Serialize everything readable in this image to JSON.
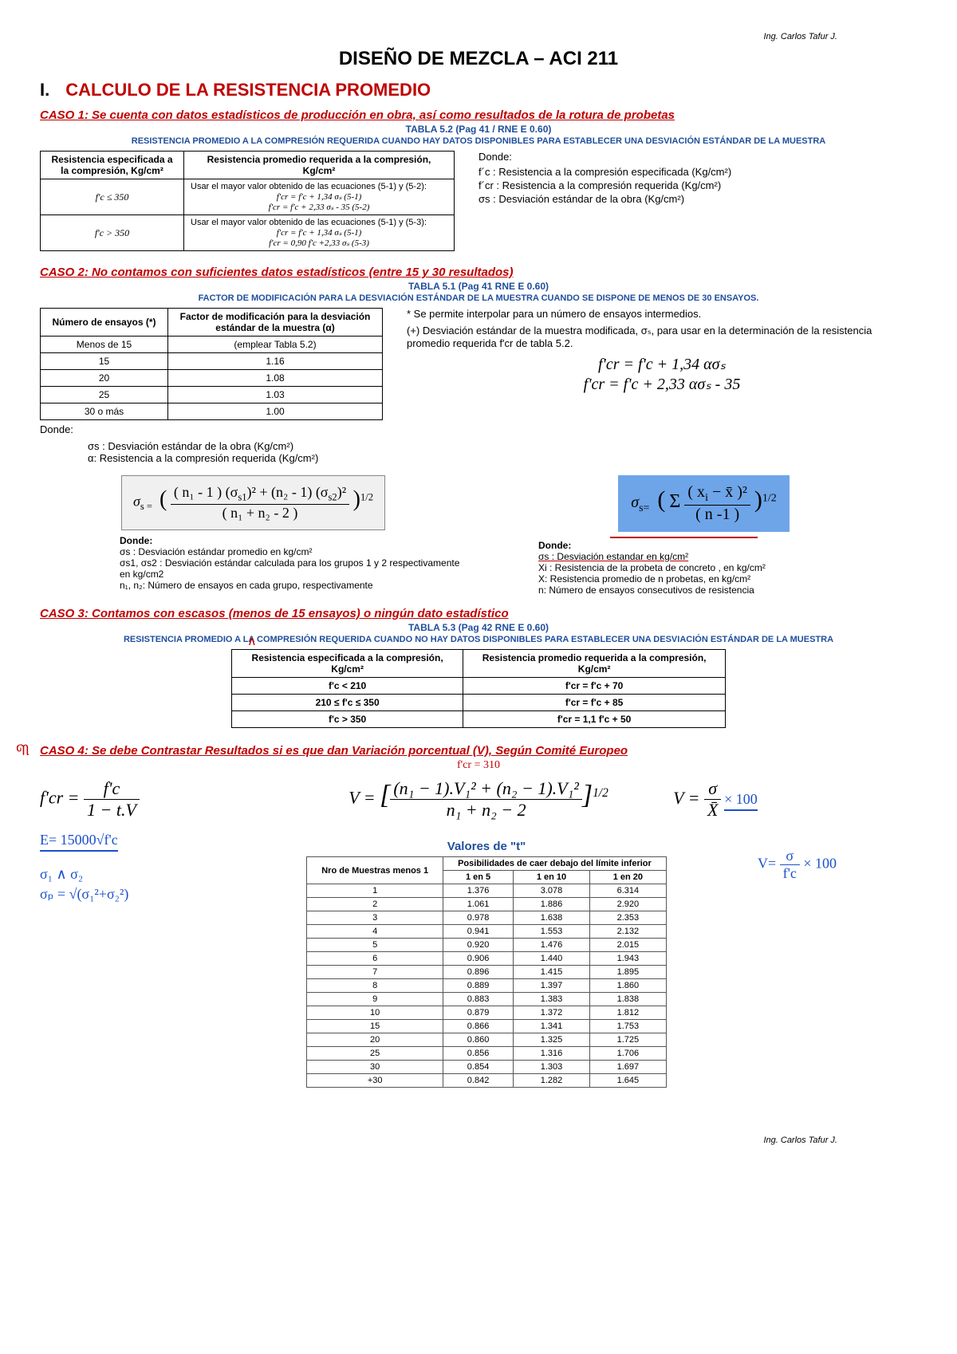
{
  "author": "Ing. Carlos Tafur J.",
  "main_title": "DISEÑO DE MEZCLA – ACI 211",
  "section1": {
    "num": "I.",
    "title": "CALCULO DE LA RESISTENCIA PROMEDIO"
  },
  "caso1": {
    "heading": "CASO 1: Se cuenta con datos estadísticos de producción en obra, así como resultados de la rotura de probetas",
    "tabla_label": "TABLA 5.2 (Pag 41 / RNE E 0.60)",
    "tabla_desc": "RESISTENCIA PROMEDIO A LA COMPRESIÓN REQUERIDA CUANDO HAY DATOS DISPONIBLES PARA ESTABLECER UNA DESVIACIÓN ESTÁNDAR DE LA MUESTRA",
    "table": {
      "h1": "Resistencia especificada a la compresión, Kg/cm²",
      "h2": "Resistencia promedio requerida a la compresión, Kg/cm²",
      "r1c1": "f'c ≤ 350",
      "r1c2a": "Usar el mayor valor obtenido de las ecuaciones (5-1) y (5-2):",
      "r1c2b": "f'cr = f'c + 1,34 σₛ        (5-1)",
      "r1c2c": "f'cr = f'c + 2,33 σₛ - 35   (5-2)",
      "r2c1": "f'c > 350",
      "r2c2a": "Usar el mayor valor obtenido de las ecuaciones (5-1) y (5-3):",
      "r2c2b": "f'cr = f'c + 1,34 σₛ        (5-1)",
      "r2c2c": "f'cr = 0,90 f'c +2,33 σₛ    (5-3)"
    },
    "donde": "Donde:",
    "d1": "f´c : Resistencia a la compresión especificada (Kg/cm²)",
    "d2": "f´cr : Resistencia a la compresión requerida (Kg/cm²)",
    "d3": "σs : Desviación estándar de la obra (Kg/cm²)"
  },
  "caso2": {
    "heading": "CASO 2: No contamos con suficientes datos estadísticos (entre 15 y 30 resultados)",
    "tabla_label": "TABLA 5.1 (Pag 41 RNE E 0.60)",
    "tabla_desc": "FACTOR DE MODIFICACIÓN PARA LA DESVIACIÓN ESTÁNDAR DE LA MUESTRA CUANDO SE DISPONE DE MENOS DE 30 ENSAYOS.",
    "table": {
      "h1": "Número de ensayos (*)",
      "h2": "Factor de modificación para la desviación estándar de la muestra (α)",
      "rows": [
        [
          "Menos de 15",
          "(emplear Tabla 5.2)"
        ],
        [
          "15",
          "1.16"
        ],
        [
          "20",
          "1.08"
        ],
        [
          "25",
          "1.03"
        ],
        [
          "30 o más",
          "1.00"
        ]
      ]
    },
    "note1": "* Se permite interpolar para un número de ensayos intermedios.",
    "note2": "(+) Desviación estándar de la muestra modificada, σₛ, para usar en la determinación de la resistencia promedio requerida  f'cr de tabla 5.2.",
    "eq1": "f'cr = f'c + 1,34 ασₛ",
    "eq2": "f'cr = f'c + 2,33 ασₛ - 35",
    "donde": "Donde:",
    "d1": "σs : Desviación estándar de la obra (Kg/cm²)",
    "d2": "α: Resistencia a la compresión requerida (Kg/cm²)",
    "formula_left_title": "Donde:",
    "formula_left_l1": "σs     : Desviación estándar promedio en kg/cm²",
    "formula_left_l2": "σs1, σs2 : Desviación estándar calculada para los grupos 1 y 2 respectivamente en kg/cm2",
    "formula_left_l3": "n₁, n₂: Número de ensayos en cada grupo, respectivamente",
    "formula_right_title": "Donde:",
    "fr1": "σs : Desviación estandar en kg/cm²",
    "fr2": "Xi : Resistencia de la probeta de concreto , en kg/cm²",
    "fr3": "X:  Resistencia promedio de n probetas, en kg/cm²",
    "fr4": "n:  Número de ensayos consecutivos de resistencia"
  },
  "caso3": {
    "heading": "CASO 3: Contamos con escasos (menos de 15 ensayos) o ningún dato estadístico",
    "tabla_label": "TABLA 5.3 (Pag 42 RNE E 0.60)",
    "tabla_desc": "RESISTENCIA PROMEDIO A LA COMPRESIÓN REQUERIDA CUANDO NO HAY DATOS DISPONIBLES PARA ESTABLECER UNA DESVIACIÓN ESTÁNDAR DE LA MUESTRA",
    "table": {
      "h1": "Resistencia especificada a la compresión, Kg/cm²",
      "h2": "Resistencia promedio requerida a la compresión, Kg/cm²",
      "rows": [
        [
          "f'c < 210",
          "f'cr = f'c + 70"
        ],
        [
          "210 ≤ f'c ≤ 350",
          "f'cr = f'c + 85"
        ],
        [
          "f'c > 350",
          "f'cr = 1,1 f'c + 50"
        ]
      ]
    }
  },
  "caso4": {
    "heading": "CASO 4: Se debe Contrastar Resultados si es que dan Variación porcentual (V), Según Comité Europeo",
    "hw_top": "f'cr = 310",
    "hw_e": "E= 15000√f'c",
    "hw_sigma12": "σ₁  ∧  σ₂",
    "hw_sigmap": "σₚ = √(σ₁²+σ₂²)",
    "hw_v100": "V = σ  × 100",
    "hw_v100_den": "     X̄",
    "hw_v2": "V= σ  × 100",
    "hw_v2_den": "   f'c",
    "t_title": "Valores de \"t\"",
    "t_headers": [
      "Nro de Muestras menos 1",
      "1 en 5",
      "1 en 10",
      "1 en 20"
    ],
    "t_span": "Posibilidades de caer debajo del límite inferior",
    "t_rows": [
      [
        "1",
        "1.376",
        "3.078",
        "6.314"
      ],
      [
        "2",
        "1.061",
        "1.886",
        "2.920"
      ],
      [
        "3",
        "0.978",
        "1.638",
        "2.353"
      ],
      [
        "4",
        "0.941",
        "1.553",
        "2.132"
      ],
      [
        "5",
        "0.920",
        "1.476",
        "2.015"
      ],
      [
        "6",
        "0.906",
        "1.440",
        "1.943"
      ],
      [
        "7",
        "0.896",
        "1.415",
        "1.895"
      ],
      [
        "8",
        "0.889",
        "1.397",
        "1.860"
      ],
      [
        "9",
        "0.883",
        "1.383",
        "1.838"
      ],
      [
        "10",
        "0.879",
        "1.372",
        "1.812"
      ],
      [
        "15",
        "0.866",
        "1.341",
        "1.753"
      ],
      [
        "20",
        "0.860",
        "1.325",
        "1.725"
      ],
      [
        "25",
        "0.856",
        "1.316",
        "1.706"
      ],
      [
        "30",
        "0.854",
        "1.303",
        "1.697"
      ],
      [
        "+30",
        "0.842",
        "1.282",
        "1.645"
      ]
    ]
  },
  "colors": {
    "red": "#c00000",
    "blue": "#1f4e9c",
    "boxblue": "#6ea5e8",
    "handblue": "#1a4fcc"
  }
}
